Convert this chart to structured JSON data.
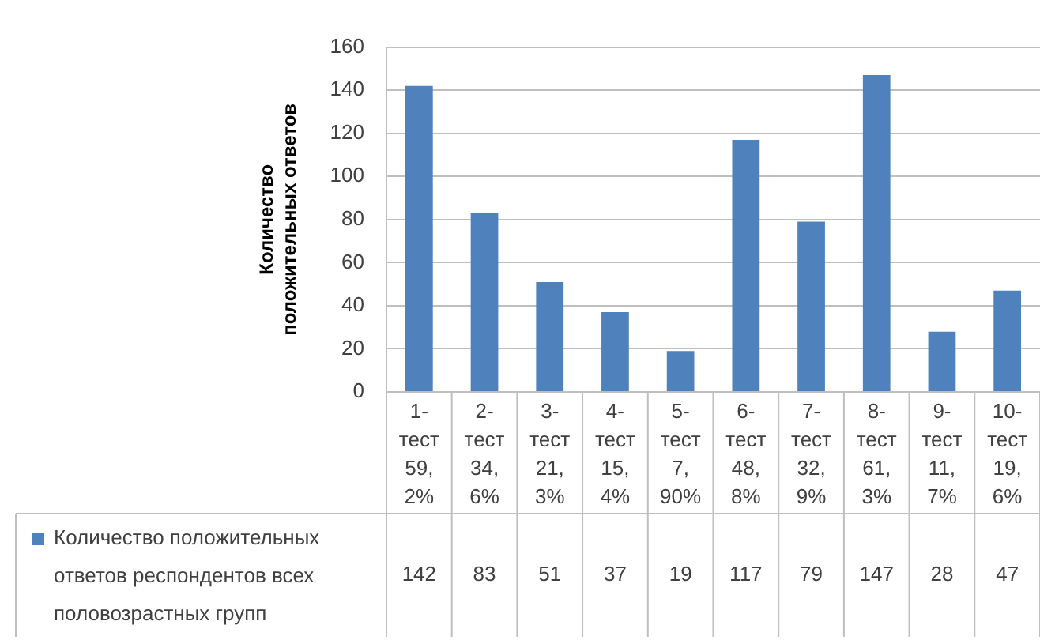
{
  "chart_data": {
    "type": "bar",
    "ylabel": "Количество положительных ответов",
    "categories": [
      "1-тест 59,2%",
      "2-тест 34,6%",
      "3-тест 21,3%",
      "4-тест 15,4%",
      "5-тест 7,90%",
      "6-тест 48,8%",
      "7-тест 32,9%",
      "8-тест 61,3%",
      "9-тест 11,7%",
      "10-тест 19,6%"
    ],
    "series": [
      {
        "name": "Количество положительных ответов респондентов всех половозрастных групп",
        "color": "#4f81bd",
        "values": [
          142,
          83,
          51,
          37,
          19,
          117,
          79,
          147,
          28,
          47
        ]
      }
    ],
    "ylim": [
      0,
      160
    ],
    "yticks": [
      0,
      20,
      40,
      60,
      80,
      100,
      120,
      140,
      160
    ],
    "grid": "y",
    "legend": "bottom",
    "data_labels": true
  }
}
